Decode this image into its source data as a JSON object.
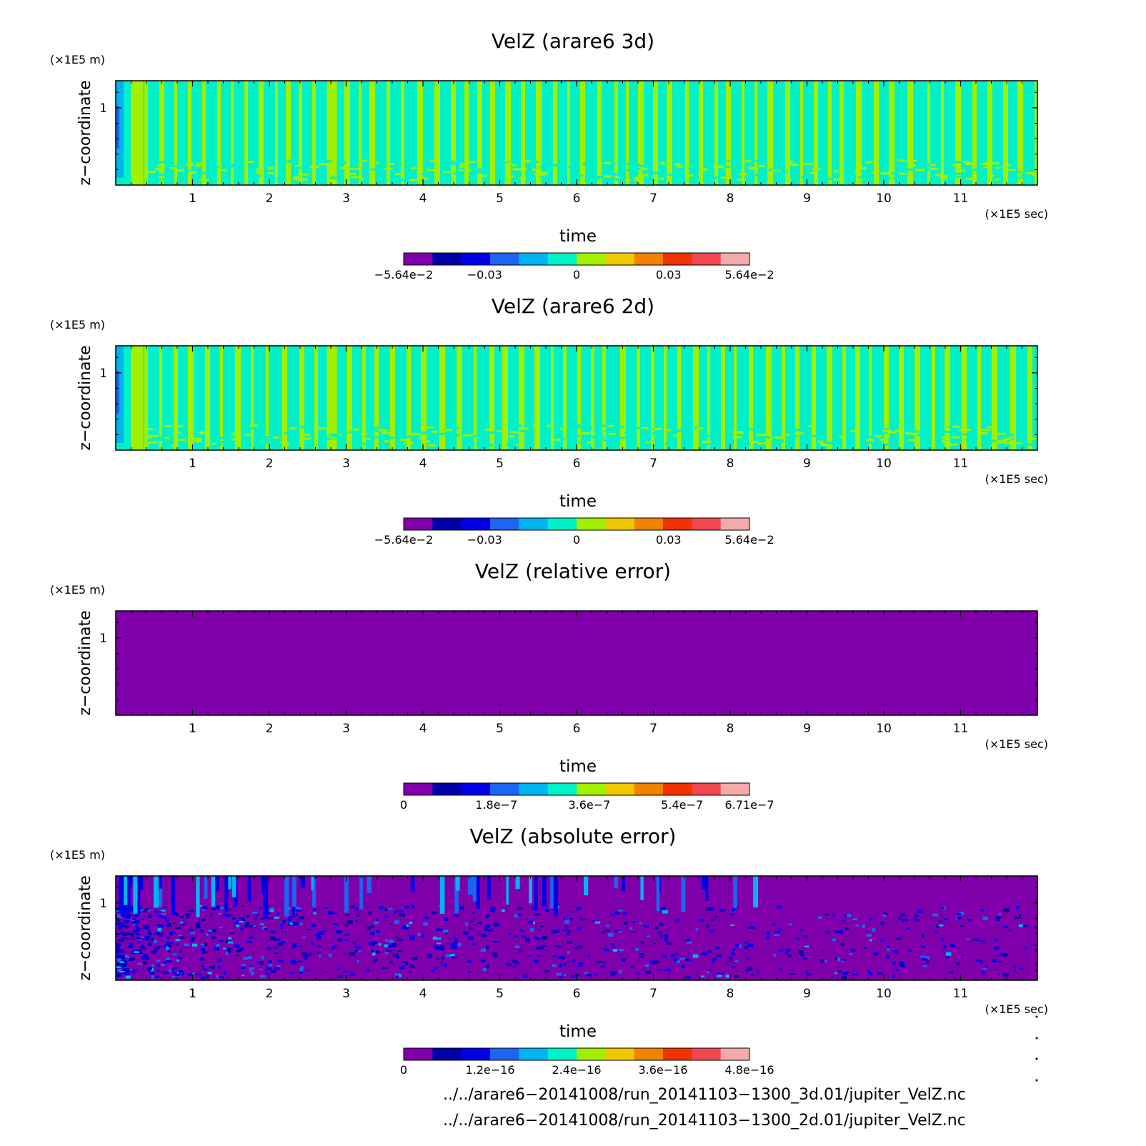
{
  "chart_data": [
    {
      "type": "heatmap",
      "title": "VelZ (arare6 3d)",
      "xlabel": "time",
      "x_unit": "(×1E5 sec)",
      "ylabel": "z−coordinate",
      "y_unit": "(×1E5 m)",
      "xlim": [
        0,
        12
      ],
      "ylim": [
        0,
        1.35
      ],
      "x_ticks": [
        "1",
        "2",
        "3",
        "4",
        "5",
        "6",
        "7",
        "8",
        "9",
        "10",
        "11"
      ],
      "y_ticks": [
        "1"
      ],
      "pattern": "oscillating",
      "colorbar": {
        "colors": [
          "#7f00aa",
          "#0000a8",
          "#0000e6",
          "#1e64f0",
          "#00b4f0",
          "#00f0c8",
          "#a0f000",
          "#f0c800",
          "#f08200",
          "#f03200",
          "#f04650",
          "#f5aaaa"
        ],
        "tick_labels": [
          {
            "label": "−5.64e−2",
            "at": 0
          },
          {
            "label": "−0.03",
            "at": 0.234
          },
          {
            "label": "0",
            "at": 0.5
          },
          {
            "label": "0.03",
            "at": 0.766
          },
          {
            "label": "5.64e−2",
            "at": 1
          }
        ]
      }
    },
    {
      "type": "heatmap",
      "title": "VelZ (arare6 2d)",
      "xlabel": "time",
      "x_unit": "(×1E5 sec)",
      "ylabel": "z−coordinate",
      "y_unit": "(×1E5 m)",
      "xlim": [
        0,
        12
      ],
      "ylim": [
        0,
        1.35
      ],
      "x_ticks": [
        "1",
        "2",
        "3",
        "4",
        "5",
        "6",
        "7",
        "8",
        "9",
        "10",
        "11"
      ],
      "y_ticks": [
        "1"
      ],
      "pattern": "oscillating",
      "colorbar": {
        "colors": [
          "#7f00aa",
          "#0000a8",
          "#0000e6",
          "#1e64f0",
          "#00b4f0",
          "#00f0c8",
          "#a0f000",
          "#f0c800",
          "#f08200",
          "#f03200",
          "#f04650",
          "#f5aaaa"
        ],
        "tick_labels": [
          {
            "label": "−5.64e−2",
            "at": 0
          },
          {
            "label": "−0.03",
            "at": 0.234
          },
          {
            "label": "0",
            "at": 0.5
          },
          {
            "label": "0.03",
            "at": 0.766
          },
          {
            "label": "5.64e−2",
            "at": 1
          }
        ]
      }
    },
    {
      "type": "heatmap",
      "title": "VelZ (relative error)",
      "xlabel": "time",
      "x_unit": "(×1E5 sec)",
      "ylabel": "z−coordinate",
      "y_unit": "(×1E5 m)",
      "xlim": [
        0,
        12
      ],
      "ylim": [
        0,
        1.35
      ],
      "x_ticks": [
        "1",
        "2",
        "3",
        "4",
        "5",
        "6",
        "7",
        "8",
        "9",
        "10",
        "11"
      ],
      "y_ticks": [
        "1"
      ],
      "pattern": "uniform",
      "colorbar": {
        "colors": [
          "#7f00aa",
          "#0000a8",
          "#0000e6",
          "#1e64f0",
          "#00b4f0",
          "#00f0c8",
          "#a0f000",
          "#f0c800",
          "#f08200",
          "#f03200",
          "#f04650",
          "#f5aaaa"
        ],
        "tick_labels": [
          {
            "label": "0",
            "at": 0
          },
          {
            "label": "1.8e−7",
            "at": 0.268
          },
          {
            "label": "3.6e−7",
            "at": 0.537
          },
          {
            "label": "5.4e−7",
            "at": 0.805
          },
          {
            "label": "6.71e−7",
            "at": 1
          }
        ]
      }
    },
    {
      "type": "heatmap",
      "title": "VelZ (absolute error)",
      "xlabel": "time",
      "x_unit": "(×1E5 sec)",
      "ylabel": "z−coordinate",
      "y_unit": "(×1E5 m)",
      "xlim": [
        0,
        12
      ],
      "ylim": [
        0,
        1.35
      ],
      "x_ticks": [
        "1",
        "2",
        "3",
        "4",
        "5",
        "6",
        "7",
        "8",
        "9",
        "10",
        "11"
      ],
      "y_ticks": [
        "1"
      ],
      "pattern": "sparse",
      "colorbar": {
        "colors": [
          "#7f00aa",
          "#0000a8",
          "#0000e6",
          "#1e64f0",
          "#00b4f0",
          "#00f0c8",
          "#a0f000",
          "#f0c800",
          "#f08200",
          "#f03200",
          "#f04650",
          "#f5aaaa"
        ],
        "tick_labels": [
          {
            "label": "0",
            "at": 0
          },
          {
            "label": "1.2e−16",
            "at": 0.25
          },
          {
            "label": "2.4e−16",
            "at": 0.5
          },
          {
            "label": "3.6e−16",
            "at": 0.75
          },
          {
            "label": "4.8e−16",
            "at": 1
          }
        ]
      }
    }
  ],
  "footer": {
    "line1": "../../arare6−20141008/run_20141103−1300_3d.01/jupiter_VelZ.nc",
    "line2": "../../arare6−20141008/run_20141103−1300_2d.01/jupiter_VelZ.nc"
  }
}
